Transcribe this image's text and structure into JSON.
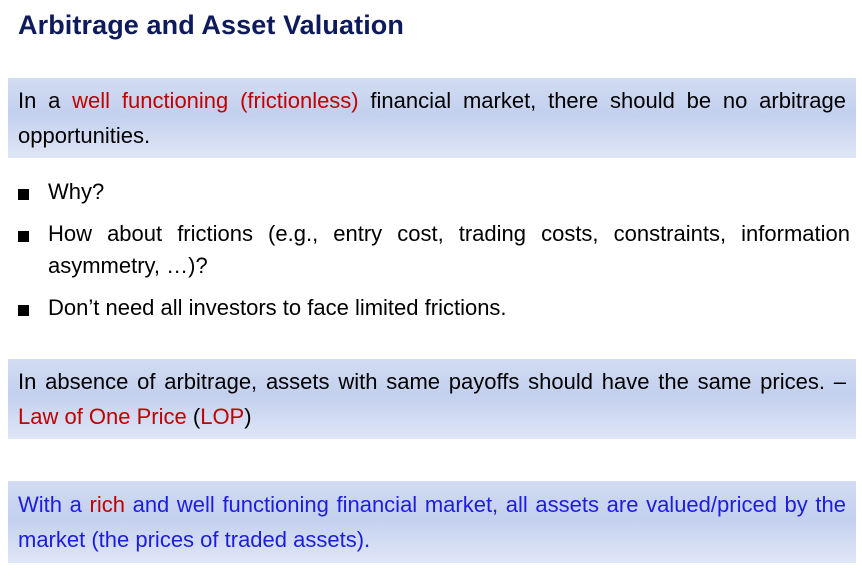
{
  "title": "Arbitrage and Asset Valuation",
  "box1": {
    "pre": "In a ",
    "highlight": "well functioning (frictionless)",
    "post": " financial market, there should be no arbitrage opportunities."
  },
  "bullets": [
    {
      "text": "Why?"
    },
    {
      "text": "How about frictions (e.g., entry cost, trading costs, constraints, information asymmetry, …)?"
    },
    {
      "text": "Don’t need all investors to face limited frictions."
    }
  ],
  "box2": {
    "pre": "In absence of arbitrage, assets with same payoffs should have the same prices. – ",
    "highlight_1": "Law of One Price",
    "mid": " (",
    "highlight_2": "LOP",
    "post": ")"
  },
  "box3": {
    "pre": "With a ",
    "highlight": "rich",
    "post": " and well functioning financial market, all assets are valued/priced by the market (the prices of traded assets)."
  },
  "colors": {
    "title": "#0d1a5c",
    "highlight": "#c00000",
    "box3_text": "#1d1de0",
    "box_background": "#c9d5f0"
  }
}
